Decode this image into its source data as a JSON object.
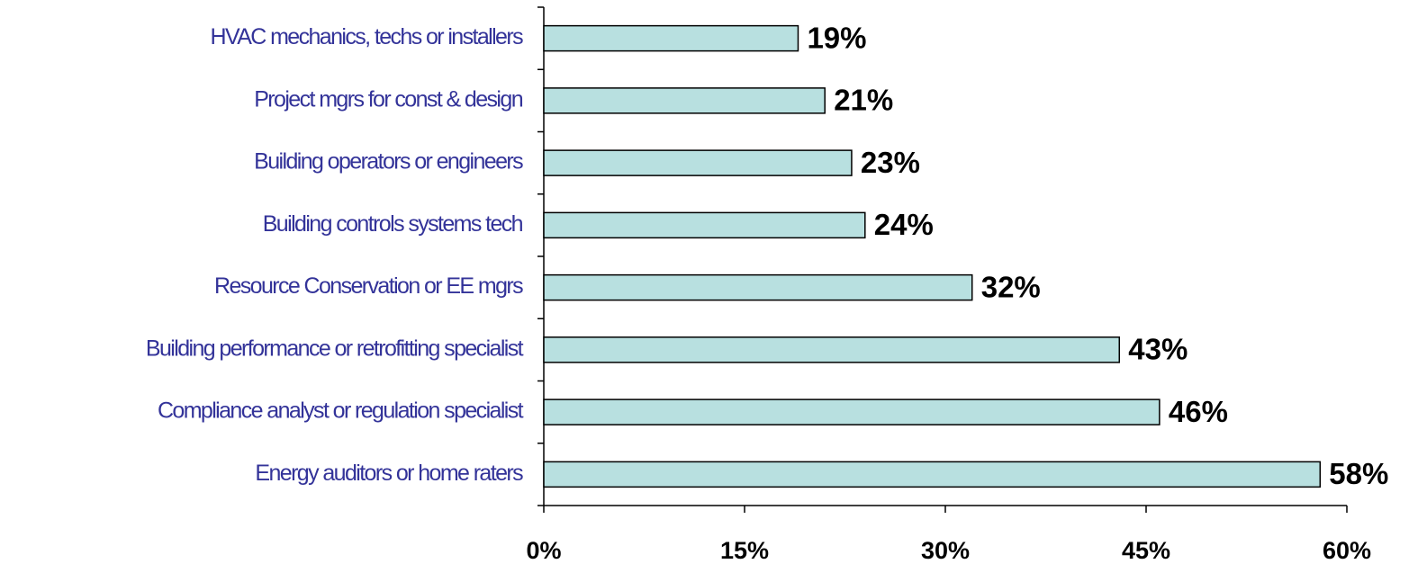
{
  "chart_data": {
    "type": "hbar",
    "categories": [
      "HVAC mechanics, techs or installers",
      "Project mgrs for const & design",
      "Building operators or engineers",
      "Building controls systems tech",
      "Resource Conservation or EE mgrs",
      "Building performance or retrofitting specialist",
      "Compliance analyst or regulation specialist",
      "Energy auditors or home raters"
    ],
    "values": [
      19,
      21,
      23,
      24,
      32,
      43,
      46,
      58
    ],
    "value_labels": [
      "19%",
      "21%",
      "23%",
      "24%",
      "32%",
      "43%",
      "46%",
      "58%"
    ],
    "color": "#b8e0e0",
    "xlim": [
      0,
      60
    ],
    "xticks": [
      {
        "value": 0,
        "label": "0%"
      },
      {
        "value": 15,
        "label": "15%"
      },
      {
        "value": 30,
        "label": "30%"
      },
      {
        "value": 45,
        "label": "45%"
      },
      {
        "value": 60,
        "label": "60%"
      }
    ]
  }
}
